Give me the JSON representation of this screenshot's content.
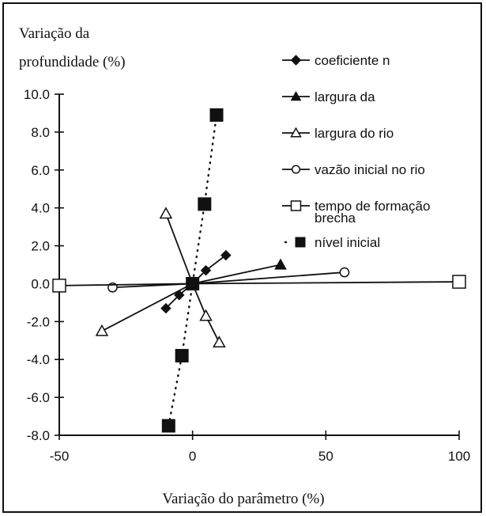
{
  "chart_data": {
    "type": "line",
    "ylabel_line1": "Variação da",
    "ylabel_line2": "profundidade (%)",
    "xlabel": "Variação do parâmetro (%)",
    "xlim": [
      -50,
      100
    ],
    "ylim": [
      -8,
      10
    ],
    "xticks": [
      -50,
      0,
      50,
      100
    ],
    "xtick_labels": [
      "-50",
      "0",
      "50",
      "100"
    ],
    "yticks": [
      10,
      8,
      6,
      4,
      2,
      0,
      -2,
      -4,
      -6,
      -8
    ],
    "ytick_labels": [
      "10.0",
      "8.0",
      "6.0",
      "4.0",
      "2.0",
      "0.0",
      "-2.0",
      "-4.0",
      "-6.0",
      "-8.0"
    ],
    "grid": false,
    "legend_position": "top-right",
    "series": [
      {
        "name": "coeficiente n",
        "marker": "filled-diamond",
        "line": "solid",
        "x": [
          -10,
          -5,
          0,
          5,
          12.5
        ],
        "y": [
          -1.3,
          -0.6,
          0,
          0.7,
          1.5
        ]
      },
      {
        "name": "largura da",
        "marker": "filled-triangle",
        "line": "solid",
        "x": [
          0,
          33
        ],
        "y": [
          0,
          1.0
        ]
      },
      {
        "name": "largura do rio",
        "marker": "open-triangle",
        "line": "solid",
        "x": [
          -10,
          0,
          5,
          10
        ],
        "y": [
          3.7,
          0,
          -1.7,
          -3.1
        ]
      },
      {
        "name": "vazão inicial no rio",
        "marker": "open-circle",
        "line": "solid",
        "x": [
          -30,
          0,
          57
        ],
        "y": [
          -0.2,
          0,
          0.6
        ]
      },
      {
        "name": "tempo de formação brecha",
        "marker": "open-square",
        "line": "solid",
        "x": [
          -50,
          0,
          100
        ],
        "y": [
          -0.1,
          0,
          0.1
        ]
      },
      {
        "name": "nível inicial",
        "marker": "filled-square",
        "line": "dotted",
        "x": [
          -9,
          -4,
          0,
          4.5,
          9
        ],
        "y": [
          -7.5,
          -3.8,
          0,
          4.2,
          8.9
        ]
      },
      {
        "name": "",
        "marker": "open-triangle",
        "line": "solid",
        "x": [
          -34,
          0
        ],
        "y": [
          -2.5,
          0
        ]
      }
    ],
    "colors": {
      "ink": "#111111",
      "background": "#ffffff"
    }
  }
}
